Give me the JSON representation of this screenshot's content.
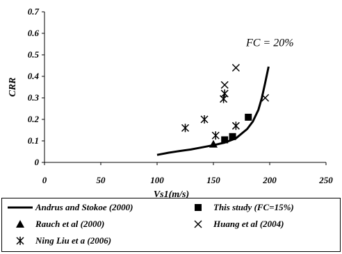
{
  "chart_data": {
    "type": "scatter",
    "xlabel": "Vs1(m/s)",
    "ylabel": "CRR",
    "xlim": [
      0,
      250
    ],
    "ylim": [
      0,
      0.7
    ],
    "x_ticks": [
      "0",
      "50",
      "100",
      "150",
      "200",
      "250"
    ],
    "y_ticks": [
      "0",
      "0.1",
      "0.2",
      "0.3",
      "0.4",
      "0.5",
      "0.6",
      "0.7"
    ],
    "grid": false,
    "legend_position": "bottom",
    "annotation": "FC = 20%",
    "series": [
      {
        "name": "Andrus and Stokoe (2000)",
        "marker": "line",
        "color": "#000000",
        "x": [
          100,
          110,
          120,
          130,
          140,
          150,
          160,
          170,
          180,
          185,
          190,
          193,
          196,
          199
        ],
        "y": [
          0.035,
          0.045,
          0.053,
          0.06,
          0.07,
          0.08,
          0.092,
          0.112,
          0.155,
          0.19,
          0.245,
          0.3,
          0.37,
          0.445
        ]
      },
      {
        "name": "This study (FC=15%)",
        "marker": "square",
        "x": [
          160,
          167,
          181
        ],
        "y": [
          0.105,
          0.12,
          0.21
        ]
      },
      {
        "name": "Rauch et al (2000)",
        "marker": "triangle",
        "x": [
          150
        ],
        "y": [
          0.085
        ]
      },
      {
        "name": "Huang et al (2004)",
        "marker": "x",
        "x": [
          160,
          170,
          196
        ],
        "y": [
          0.36,
          0.44,
          0.3
        ]
      },
      {
        "name": "Ning Liu et a (2006)",
        "marker": "star",
        "x": [
          125,
          142,
          152,
          159,
          160,
          170
        ],
        "y": [
          0.16,
          0.2,
          0.125,
          0.295,
          0.32,
          0.17
        ]
      }
    ]
  }
}
